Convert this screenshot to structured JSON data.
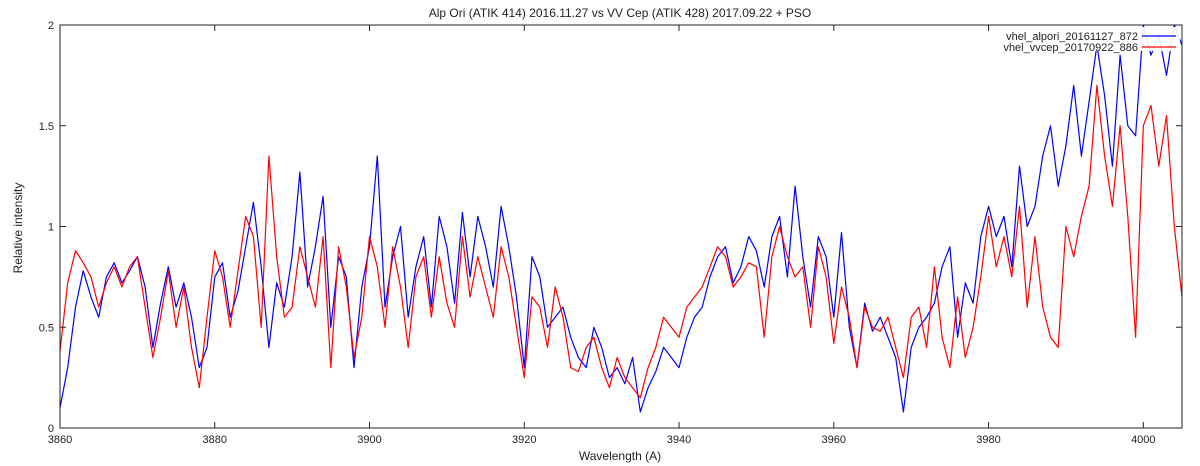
{
  "chart_data": {
    "type": "line",
    "title": "Alp Ori (ATIK 414) 2016.11.27 vs VV Cep (ATIK 428) 2017.09.22 + PSO",
    "xlabel": "Wavelength (A)",
    "ylabel": "Relative intensity",
    "xlim": [
      3860,
      4005
    ],
    "ylim": [
      0,
      2
    ],
    "xticks": [
      "3860",
      "3880",
      "3900",
      "3920",
      "3940",
      "3960",
      "3980",
      "4000"
    ],
    "yticks": [
      "0",
      "0.5",
      "1",
      "1.5",
      "2"
    ],
    "grid": false,
    "legend_position": "top-right",
    "series": [
      {
        "name": "vhel_alpori_20161127_872",
        "color": "#0000ff",
        "x": [
          3860,
          3861,
          3862,
          3863,
          3864,
          3865,
          3866,
          3867,
          3868,
          3869,
          3870,
          3871,
          3872,
          3873,
          3874,
          3875,
          3876,
          3877,
          3878,
          3879,
          3880,
          3881,
          3882,
          3883,
          3884,
          3885,
          3886,
          3887,
          3888,
          3889,
          3890,
          3891,
          3892,
          3893,
          3894,
          3895,
          3896,
          3897,
          3898,
          3899,
          3900,
          3901,
          3902,
          3903,
          3904,
          3905,
          3906,
          3907,
          3908,
          3909,
          3910,
          3911,
          3912,
          3913,
          3914,
          3915,
          3916,
          3917,
          3918,
          3919,
          3920,
          3921,
          3922,
          3923,
          3924,
          3925,
          3926,
          3927,
          3928,
          3929,
          3930,
          3931,
          3932,
          3933,
          3934,
          3935,
          3936,
          3937,
          3938,
          3939,
          3940,
          3941,
          3942,
          3943,
          3944,
          3945,
          3946,
          3947,
          3948,
          3949,
          3950,
          3951,
          3952,
          3953,
          3954,
          3955,
          3956,
          3957,
          3958,
          3959,
          3960,
          3961,
          3962,
          3963,
          3964,
          3965,
          3966,
          3967,
          3968,
          3969,
          3970,
          3971,
          3972,
          3973,
          3974,
          3975,
          3976,
          3977,
          3978,
          3979,
          3980,
          3981,
          3982,
          3983,
          3984,
          3985,
          3986,
          3987,
          3988,
          3989,
          3990,
          3991,
          3992,
          3993,
          3994,
          3995,
          3996,
          3997,
          3998,
          3999,
          4000,
          4001,
          4002,
          4003,
          4004,
          4005
        ],
        "y": [
          0.1,
          0.3,
          0.6,
          0.78,
          0.65,
          0.55,
          0.75,
          0.82,
          0.72,
          0.78,
          0.85,
          0.7,
          0.4,
          0.62,
          0.8,
          0.6,
          0.72,
          0.55,
          0.3,
          0.4,
          0.75,
          0.82,
          0.55,
          0.68,
          0.9,
          1.12,
          0.8,
          0.4,
          0.72,
          0.6,
          0.85,
          1.27,
          0.7,
          0.9,
          1.15,
          0.5,
          0.85,
          0.75,
          0.3,
          0.7,
          0.9,
          1.35,
          0.6,
          0.85,
          1.0,
          0.55,
          0.8,
          0.95,
          0.6,
          1.05,
          0.9,
          0.62,
          1.07,
          0.75,
          1.05,
          0.9,
          0.7,
          1.1,
          0.9,
          0.65,
          0.3,
          0.85,
          0.75,
          0.5,
          0.55,
          0.6,
          0.45,
          0.35,
          0.3,
          0.5,
          0.4,
          0.25,
          0.3,
          0.22,
          0.35,
          0.08,
          0.2,
          0.28,
          0.4,
          0.35,
          0.3,
          0.45,
          0.55,
          0.6,
          0.75,
          0.85,
          0.9,
          0.72,
          0.8,
          0.95,
          0.88,
          0.7,
          0.95,
          1.05,
          0.75,
          1.2,
          0.85,
          0.6,
          0.95,
          0.85,
          0.55,
          0.97,
          0.5,
          0.3,
          0.62,
          0.48,
          0.55,
          0.45,
          0.35,
          0.08,
          0.4,
          0.5,
          0.55,
          0.62,
          0.8,
          0.9,
          0.45,
          0.72,
          0.62,
          0.95,
          1.1,
          0.95,
          1.05,
          0.8,
          1.3,
          1.0,
          1.1,
          1.35,
          1.5,
          1.2,
          1.4,
          1.7,
          1.35,
          1.62,
          1.9,
          1.65,
          1.3,
          1.85,
          1.5,
          1.45,
          2.0,
          1.85,
          1.95,
          1.75,
          2.0,
          1.9
        ]
      },
      {
        "name": "vhel_vvcep_20170922_886",
        "color": "#ff0000",
        "x": [
          3860,
          3861,
          3862,
          3863,
          3864,
          3865,
          3866,
          3867,
          3868,
          3869,
          3870,
          3871,
          3872,
          3873,
          3874,
          3875,
          3876,
          3877,
          3878,
          3879,
          3880,
          3881,
          3882,
          3883,
          3884,
          3885,
          3886,
          3887,
          3888,
          3889,
          3890,
          3891,
          3892,
          3893,
          3894,
          3895,
          3896,
          3897,
          3898,
          3899,
          3900,
          3901,
          3902,
          3903,
          3904,
          3905,
          3906,
          3907,
          3908,
          3909,
          3910,
          3911,
          3912,
          3913,
          3914,
          3915,
          3916,
          3917,
          3918,
          3919,
          3920,
          3921,
          3922,
          3923,
          3924,
          3925,
          3926,
          3927,
          3928,
          3929,
          3930,
          3931,
          3932,
          3933,
          3934,
          3935,
          3936,
          3937,
          3938,
          3939,
          3940,
          3941,
          3942,
          3943,
          3944,
          3945,
          3946,
          3947,
          3948,
          3949,
          3950,
          3951,
          3952,
          3953,
          3954,
          3955,
          3956,
          3957,
          3958,
          3959,
          3960,
          3961,
          3962,
          3963,
          3964,
          3965,
          3966,
          3967,
          3968,
          3969,
          3970,
          3971,
          3972,
          3973,
          3974,
          3975,
          3976,
          3977,
          3978,
          3979,
          3980,
          3981,
          3982,
          3983,
          3984,
          3985,
          3986,
          3987,
          3988,
          3989,
          3990,
          3991,
          3992,
          3993,
          3994,
          3995,
          3996,
          3997,
          3998,
          3999,
          4000,
          4001,
          4002,
          4003,
          4004,
          4005
        ],
        "y": [
          0.38,
          0.72,
          0.88,
          0.82,
          0.75,
          0.6,
          0.72,
          0.8,
          0.7,
          0.8,
          0.85,
          0.6,
          0.35,
          0.55,
          0.78,
          0.5,
          0.7,
          0.4,
          0.2,
          0.55,
          0.88,
          0.75,
          0.5,
          0.78,
          1.05,
          0.95,
          0.5,
          1.35,
          0.85,
          0.55,
          0.6,
          0.9,
          0.75,
          0.6,
          0.95,
          0.3,
          0.9,
          0.7,
          0.35,
          0.55,
          0.95,
          0.8,
          0.5,
          0.9,
          0.7,
          0.4,
          0.75,
          0.85,
          0.55,
          0.85,
          0.62,
          0.5,
          0.95,
          0.65,
          0.85,
          0.7,
          0.55,
          0.9,
          0.75,
          0.5,
          0.25,
          0.65,
          0.6,
          0.4,
          0.7,
          0.55,
          0.3,
          0.28,
          0.4,
          0.45,
          0.3,
          0.2,
          0.35,
          0.25,
          0.2,
          0.15,
          0.3,
          0.4,
          0.55,
          0.5,
          0.45,
          0.6,
          0.65,
          0.7,
          0.8,
          0.9,
          0.85,
          0.7,
          0.75,
          0.82,
          0.8,
          0.45,
          0.85,
          1.0,
          0.85,
          0.75,
          0.8,
          0.5,
          0.9,
          0.75,
          0.42,
          0.7,
          0.55,
          0.3,
          0.6,
          0.5,
          0.48,
          0.55,
          0.4,
          0.25,
          0.55,
          0.6,
          0.4,
          0.8,
          0.45,
          0.3,
          0.65,
          0.35,
          0.5,
          0.75,
          1.05,
          0.8,
          0.95,
          0.75,
          1.1,
          0.6,
          0.95,
          0.6,
          0.45,
          0.4,
          1.0,
          0.85,
          1.05,
          1.2,
          1.7,
          1.35,
          1.1,
          1.5,
          1.05,
          0.45,
          1.5,
          1.6,
          1.3,
          1.55,
          1.0,
          0.65
        ]
      }
    ]
  }
}
